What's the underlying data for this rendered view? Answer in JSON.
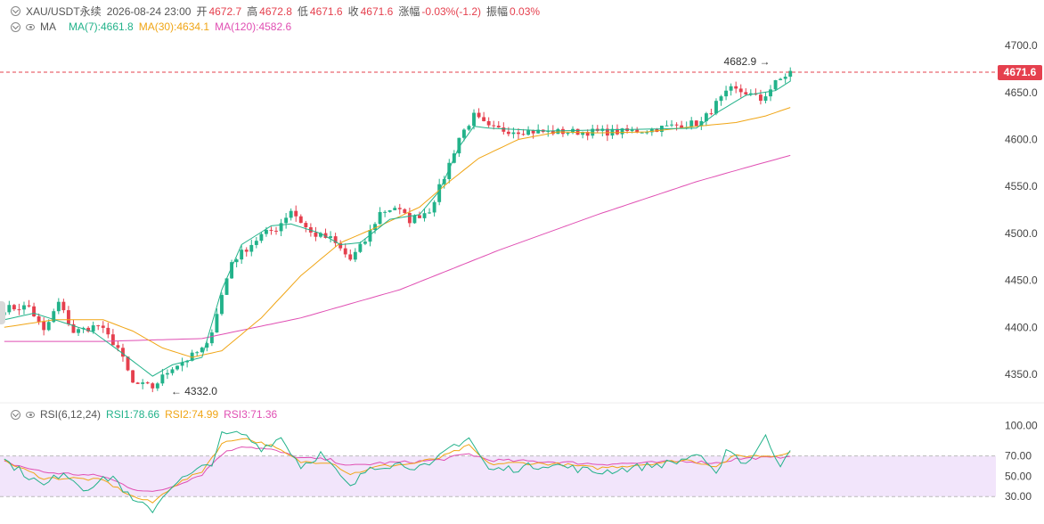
{
  "header": {
    "symbol": "XAU/USDT永续",
    "datetime": "2026-08-24 23:00",
    "open_label": "开",
    "open_value": "4672.7",
    "high_label": "高",
    "high_value": "4672.8",
    "low_label": "低",
    "low_value": "4671.6",
    "close_label": "收",
    "close_value": "4671.6",
    "change_label": "涨幅",
    "change_value": "-0.03%(-1.2)",
    "amp_label": "振幅",
    "amp_value": "0.03%"
  },
  "ma_header": {
    "label": "MA",
    "ma7": "MA(7):4661.8",
    "ma30": "MA(30):4634.1",
    "ma120": "MA(120):4582.6"
  },
  "rsi_header": {
    "label": "RSI(6,12,24)",
    "rsi1": "RSI1:78.66",
    "rsi2": "RSI2:74.99",
    "rsi3": "RSI3:71.36"
  },
  "price_axis": {
    "ticks": [
      "4700.0",
      "4650.0",
      "4600.0",
      "4550.0",
      "4500.0",
      "4450.0",
      "4400.0",
      "4350.0"
    ],
    "last_price": "4671.6"
  },
  "rsi_axis": {
    "ticks": [
      "100.00",
      "70.00",
      "50.00",
      "30.00"
    ]
  },
  "annotations": {
    "high": "4682.9",
    "low": "4332.0"
  },
  "colors": {
    "up": "#22b28a",
    "down": "#e5404e",
    "ma7": "#22b28a",
    "ma30": "#f0a515",
    "ma120": "#e04fb3",
    "rsi_band": "#f2e5fb"
  },
  "chart_data": {
    "type": "candlestick",
    "ylim": [
      4312,
      4720
    ],
    "rsi_ylim": [
      10,
      110
    ],
    "keypoints_close": [
      [
        0,
        4420
      ],
      [
        5,
        4422
      ],
      [
        8,
        4395
      ],
      [
        11,
        4426
      ],
      [
        14,
        4395
      ],
      [
        19,
        4402
      ],
      [
        23,
        4378
      ],
      [
        26,
        4340
      ],
      [
        30,
        4336
      ],
      [
        34,
        4358
      ],
      [
        37,
        4366
      ],
      [
        41,
        4380
      ],
      [
        46,
        4470
      ],
      [
        52,
        4498
      ],
      [
        55,
        4505
      ],
      [
        58,
        4525
      ],
      [
        62,
        4500
      ],
      [
        66,
        4494
      ],
      [
        70,
        4472
      ],
      [
        73,
        4492
      ],
      [
        76,
        4522
      ],
      [
        79,
        4528
      ],
      [
        82,
        4514
      ],
      [
        86,
        4525
      ],
      [
        89,
        4560
      ],
      [
        92,
        4602
      ],
      [
        95,
        4625
      ],
      [
        98,
        4612
      ],
      [
        101,
        4610
      ],
      [
        105,
        4609
      ],
      [
        110,
        4608
      ],
      [
        115,
        4608
      ],
      [
        120,
        4608
      ],
      [
        125,
        4608
      ],
      [
        130,
        4610
      ],
      [
        136,
        4615
      ],
      [
        141,
        4618
      ],
      [
        144,
        4638
      ],
      [
        147,
        4653
      ],
      [
        150,
        4650
      ],
      [
        153,
        4642
      ],
      [
        156,
        4660
      ],
      [
        159,
        4672
      ]
    ],
    "ma_keypoints": {
      "ma7": [
        [
          0,
          4408
        ],
        [
          6,
          4415
        ],
        [
          12,
          4405
        ],
        [
          18,
          4395
        ],
        [
          24,
          4372
        ],
        [
          30,
          4348
        ],
        [
          34,
          4360
        ],
        [
          40,
          4368
        ],
        [
          44,
          4440
        ],
        [
          48,
          4488
        ],
        [
          54,
          4508
        ],
        [
          58,
          4510
        ],
        [
          64,
          4500
        ],
        [
          68,
          4488
        ],
        [
          72,
          4490
        ],
        [
          78,
          4515
        ],
        [
          84,
          4520
        ],
        [
          88,
          4545
        ],
        [
          92,
          4592
        ],
        [
          95,
          4614
        ],
        [
          98,
          4612
        ],
        [
          110,
          4609
        ],
        [
          140,
          4612
        ],
        [
          144,
          4628
        ],
        [
          150,
          4647
        ],
        [
          156,
          4652
        ],
        [
          159,
          4662
        ]
      ],
      "ma30": [
        [
          0,
          4400
        ],
        [
          10,
          4408
        ],
        [
          20,
          4408
        ],
        [
          26,
          4396
        ],
        [
          32,
          4378
        ],
        [
          38,
          4368
        ],
        [
          44,
          4375
        ],
        [
          52,
          4410
        ],
        [
          60,
          4455
        ],
        [
          68,
          4490
        ],
        [
          76,
          4508
        ],
        [
          84,
          4528
        ],
        [
          90,
          4555
        ],
        [
          96,
          4580
        ],
        [
          104,
          4600
        ],
        [
          112,
          4608
        ],
        [
          120,
          4607
        ],
        [
          130,
          4608
        ],
        [
          140,
          4614
        ],
        [
          148,
          4618
        ],
        [
          154,
          4625
        ],
        [
          159,
          4634
        ]
      ],
      "ma120": [
        [
          0,
          4385
        ],
        [
          20,
          4385
        ],
        [
          40,
          4388
        ],
        [
          60,
          4410
        ],
        [
          80,
          4440
        ],
        [
          100,
          4482
        ],
        [
          120,
          4520
        ],
        [
          140,
          4555
        ],
        [
          150,
          4570
        ],
        [
          159,
          4583
        ]
      ]
    },
    "rsi_keypoints": {
      "rsi1": [
        [
          0,
          66
        ],
        [
          8,
          40
        ],
        [
          12,
          55
        ],
        [
          16,
          38
        ],
        [
          22,
          50
        ],
        [
          26,
          25
        ],
        [
          30,
          17
        ],
        [
          34,
          42
        ],
        [
          38,
          52
        ],
        [
          42,
          64
        ],
        [
          44,
          90
        ],
        [
          48,
          92
        ],
        [
          52,
          78
        ],
        [
          56,
          88
        ],
        [
          60,
          60
        ],
        [
          64,
          72
        ],
        [
          70,
          38
        ],
        [
          74,
          60
        ],
        [
          80,
          62
        ],
        [
          86,
          58
        ],
        [
          90,
          78
        ],
        [
          94,
          88
        ],
        [
          98,
          56
        ],
        [
          104,
          58
        ],
        [
          110,
          62
        ],
        [
          120,
          54
        ],
        [
          130,
          60
        ],
        [
          136,
          64
        ],
        [
          140,
          72
        ],
        [
          144,
          50
        ],
        [
          146,
          78
        ],
        [
          150,
          62
        ],
        [
          154,
          88
        ],
        [
          157,
          62
        ],
        [
          159,
          79
        ]
      ],
      "rsi2": [
        [
          0,
          65
        ],
        [
          8,
          48
        ],
        [
          14,
          48
        ],
        [
          20,
          46
        ],
        [
          26,
          30
        ],
        [
          30,
          24
        ],
        [
          34,
          40
        ],
        [
          40,
          55
        ],
        [
          44,
          82
        ],
        [
          48,
          88
        ],
        [
          54,
          80
        ],
        [
          60,
          64
        ],
        [
          66,
          64
        ],
        [
          70,
          52
        ],
        [
          76,
          60
        ],
        [
          82,
          62
        ],
        [
          88,
          68
        ],
        [
          94,
          80
        ],
        [
          98,
          62
        ],
        [
          104,
          63
        ],
        [
          112,
          62
        ],
        [
          120,
          58
        ],
        [
          130,
          62
        ],
        [
          138,
          66
        ],
        [
          144,
          60
        ],
        [
          148,
          70
        ],
        [
          152,
          70
        ],
        [
          156,
          70
        ],
        [
          159,
          75
        ]
      ],
      "rsi3": [
        [
          0,
          64
        ],
        [
          8,
          54
        ],
        [
          14,
          52
        ],
        [
          20,
          50
        ],
        [
          26,
          38
        ],
        [
          30,
          34
        ],
        [
          34,
          40
        ],
        [
          40,
          52
        ],
        [
          44,
          72
        ],
        [
          48,
          80
        ],
        [
          54,
          76
        ],
        [
          60,
          68
        ],
        [
          66,
          66
        ],
        [
          70,
          60
        ],
        [
          76,
          63
        ],
        [
          82,
          64
        ],
        [
          88,
          66
        ],
        [
          94,
          72
        ],
        [
          98,
          66
        ],
        [
          104,
          65
        ],
        [
          112,
          64
        ],
        [
          120,
          62
        ],
        [
          130,
          63
        ],
        [
          138,
          65
        ],
        [
          144,
          63
        ],
        [
          148,
          67
        ],
        [
          152,
          68
        ],
        [
          156,
          68
        ],
        [
          159,
          71
        ]
      ]
    },
    "rsi_band": [
      30,
      70
    ]
  }
}
